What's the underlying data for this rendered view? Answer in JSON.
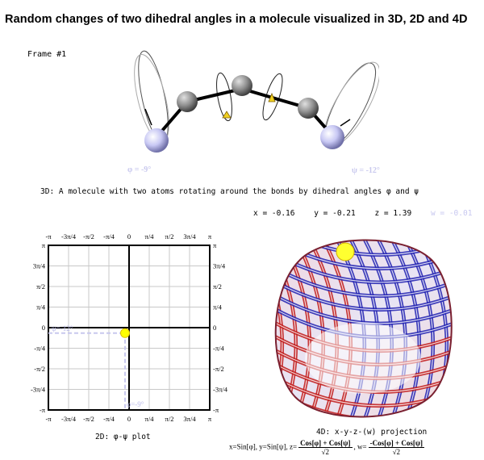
{
  "title": "Random changes of two  dihedral angles in  a molecule visualized in 3D,  2D and 4D",
  "frame_label": "Frame #1",
  "molecule": {
    "phi_label": "φ =  -9°",
    "psi_label": "ψ = -12°",
    "caption": "3D:  A molecule with two atoms rotating around the bonds by dihedral angles φ and ψ"
  },
  "coordinates": {
    "x": "x = -0.16",
    "y": "y = -0.21",
    "z": "z =  1.39",
    "w": "w = -0.01"
  },
  "plot2d": {
    "caption": "2D:  φ-ψ plot",
    "phi_deg": -9,
    "psi_deg": -12,
    "phi_readout": "φ=-9°",
    "psi_readout": "ψ=-12°",
    "ticks": [
      "-π",
      "-3π/4",
      "-π/2",
      "-π/4",
      "0",
      "π/4",
      "π/2",
      "3π/4",
      "π"
    ],
    "colors": {
      "marker": "#ffff00",
      "dashed": "#c8c8ee",
      "grid": "#c8c8c8"
    }
  },
  "projection4d": {
    "caption": "4D:  x-y-z-(w) projection",
    "w_caption": "(w)",
    "formula_prefix": "x=Sin[φ], y=Sin[ψ], z=",
    "z_num": "Cos[φ] + Cos[ψ]",
    "z_den": "√2",
    "w_prefix": ", w=",
    "w_num": "-Cos[φ] + Cos[ψ]",
    "w_den": "√2",
    "colors": {
      "red": "#c01818",
      "blue": "#2020b0",
      "marker": "#ffff30"
    }
  }
}
